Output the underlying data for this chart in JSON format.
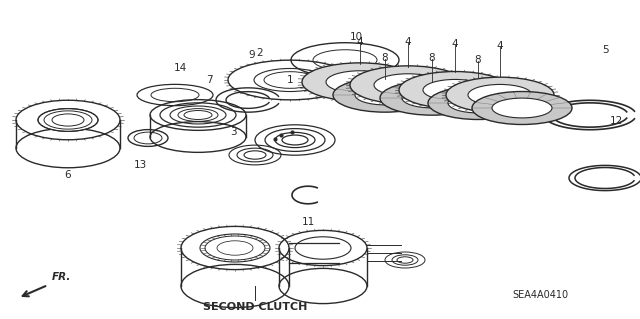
{
  "background_color": "#ffffff",
  "line_color": "#2a2a2a",
  "fig_width": 6.4,
  "fig_height": 3.19,
  "dpi": 100,
  "bottom_label": "SECOND CLUTCH",
  "diagram_id": "SEA4A0410"
}
